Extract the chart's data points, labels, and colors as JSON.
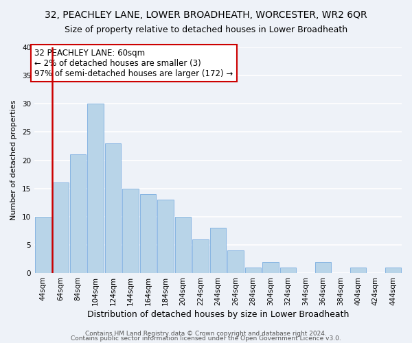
{
  "title": "32, PEACHLEY LANE, LOWER BROADHEATH, WORCESTER, WR2 6QR",
  "subtitle": "Size of property relative to detached houses in Lower Broadheath",
  "xlabel": "Distribution of detached houses by size in Lower Broadheath",
  "ylabel": "Number of detached properties",
  "bins": [
    "44sqm",
    "64sqm",
    "84sqm",
    "104sqm",
    "124sqm",
    "144sqm",
    "164sqm",
    "184sqm",
    "204sqm",
    "224sqm",
    "244sqm",
    "264sqm",
    "284sqm",
    "304sqm",
    "324sqm",
    "344sqm",
    "364sqm",
    "384sqm",
    "404sqm",
    "424sqm",
    "444sqm"
  ],
  "values": [
    10,
    16,
    21,
    30,
    23,
    15,
    14,
    13,
    10,
    6,
    8,
    4,
    1,
    2,
    1,
    0,
    2,
    0,
    1,
    0,
    1
  ],
  "bar_color": "#b8d4e8",
  "bar_edge_color": "#7aade0",
  "vline_color": "#cc0000",
  "vline_x_index": 1,
  "annotation_box_text": "32 PEACHLEY LANE: 60sqm\n← 2% of detached houses are smaller (3)\n97% of semi-detached houses are larger (172) →",
  "ylim": [
    0,
    40
  ],
  "yticks": [
    0,
    5,
    10,
    15,
    20,
    25,
    30,
    35,
    40
  ],
  "footer_line1": "Contains HM Land Registry data © Crown copyright and database right 2024.",
  "footer_line2": "Contains public sector information licensed under the Open Government Licence v3.0.",
  "background_color": "#eef2f8",
  "plot_bg_color": "#eef2f8",
  "grid_color": "#ffffff",
  "title_fontsize": 10,
  "subtitle_fontsize": 9,
  "xlabel_fontsize": 9,
  "ylabel_fontsize": 8,
  "tick_fontsize": 7.5,
  "annotation_fontsize": 8.5,
  "footer_fontsize": 6.5
}
